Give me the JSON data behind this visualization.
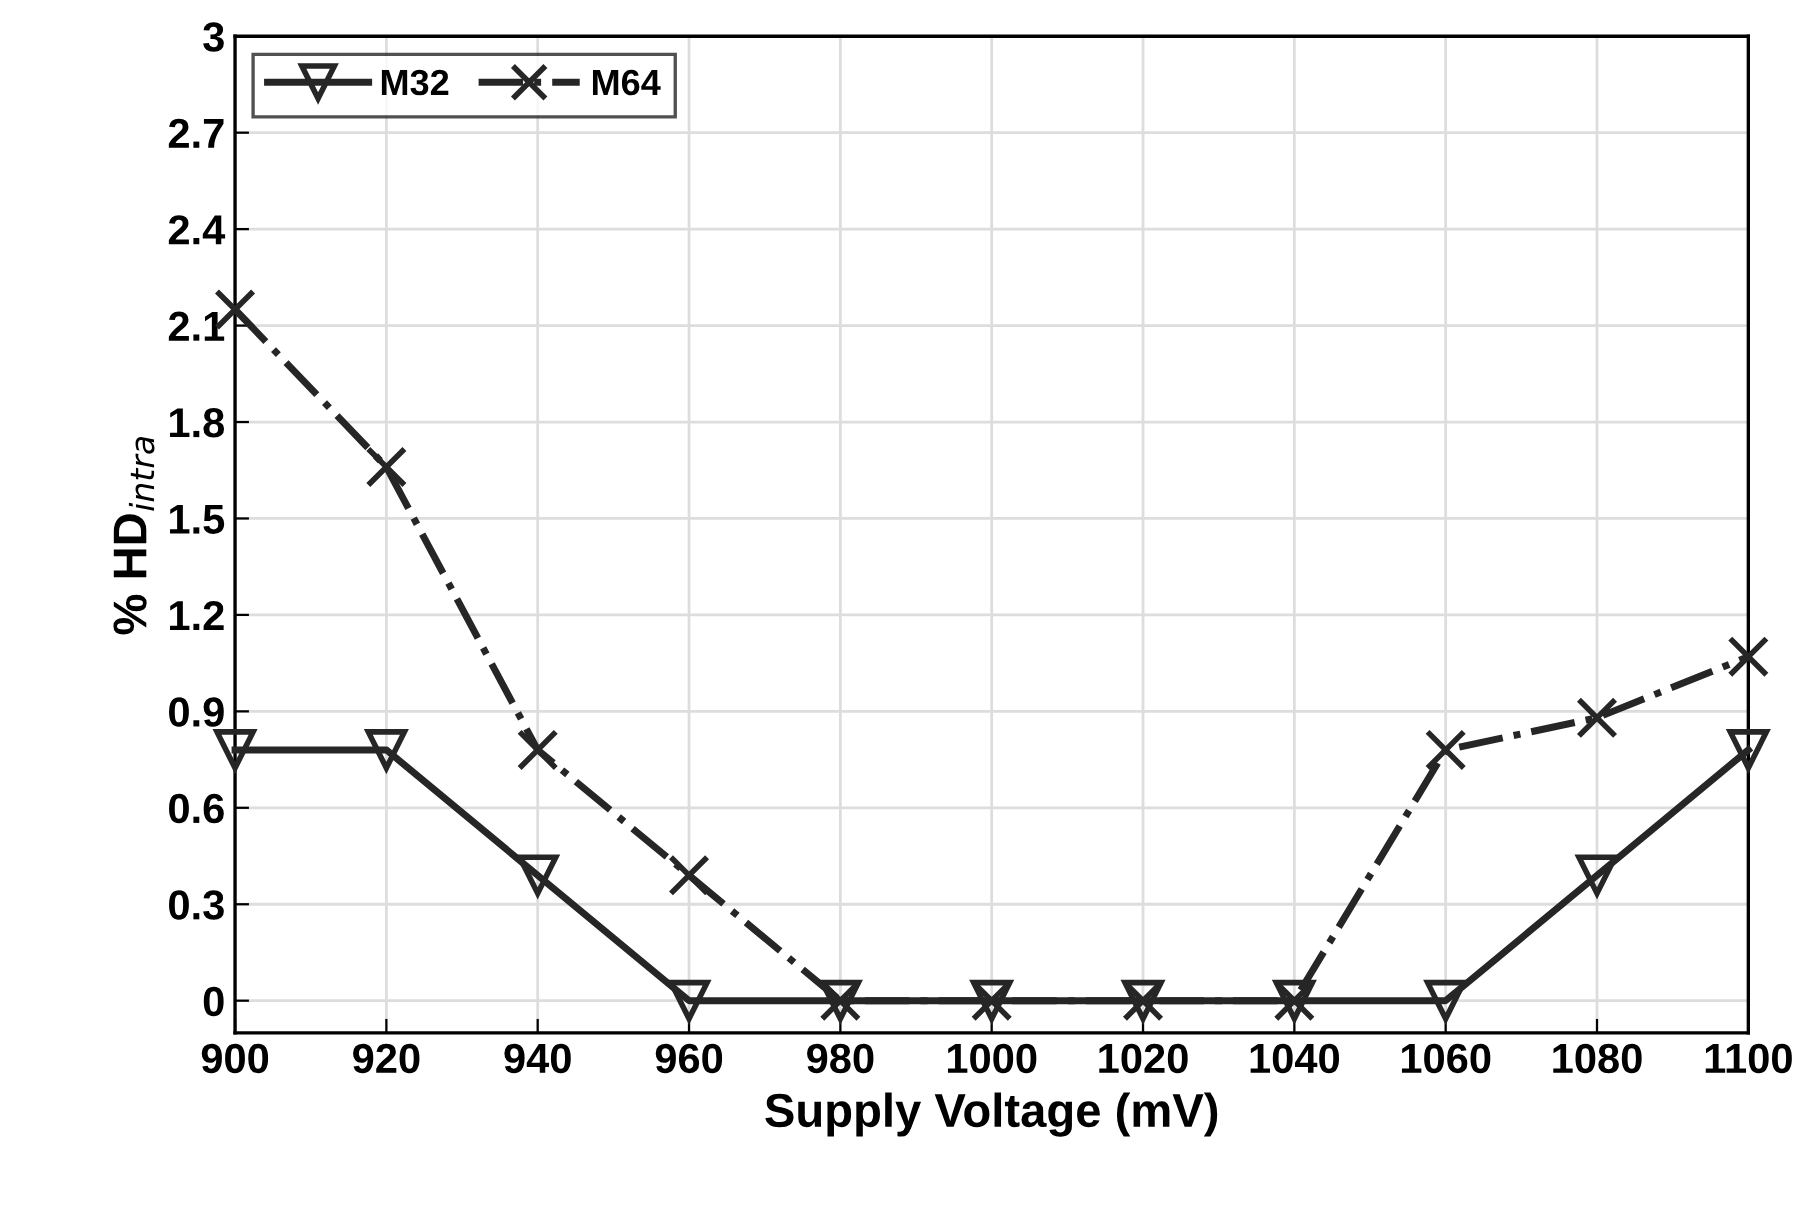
{
  "chart_data": {
    "type": "line",
    "xlabel": "Supply Voltage (mV)",
    "ylabel": "% HD$_{intra}$",
    "x": [
      900,
      920,
      940,
      960,
      980,
      1000,
      1020,
      1040,
      1060,
      1080,
      1100
    ],
    "series": [
      {
        "name": "M32",
        "color": "#262626",
        "marker": "triangle",
        "line_style": "solid",
        "values": [
          0.78,
          0.78,
          0.39,
          0,
          0,
          0,
          0,
          0,
          0,
          0.39,
          0.78
        ]
      },
      {
        "name": "M64",
        "color": "#262626",
        "marker": "cross",
        "line_style": "dashdot",
        "values": [
          2.15,
          1.66,
          0.78,
          0.39,
          0,
          0,
          0,
          0,
          0.78,
          0.88,
          1.07
        ]
      }
    ],
    "xlim": [
      900,
      1100
    ],
    "xticks": [
      900,
      920,
      940,
      960,
      980,
      1000,
      1020,
      1040,
      1060,
      1080,
      1100
    ],
    "ylim": [
      -0.1,
      3
    ],
    "yticks": [
      0,
      0.3,
      0.6,
      0.9,
      1.2,
      1.5,
      1.8,
      2.1,
      2.4,
      2.7,
      3
    ],
    "grid": true,
    "legend": "top left"
  }
}
